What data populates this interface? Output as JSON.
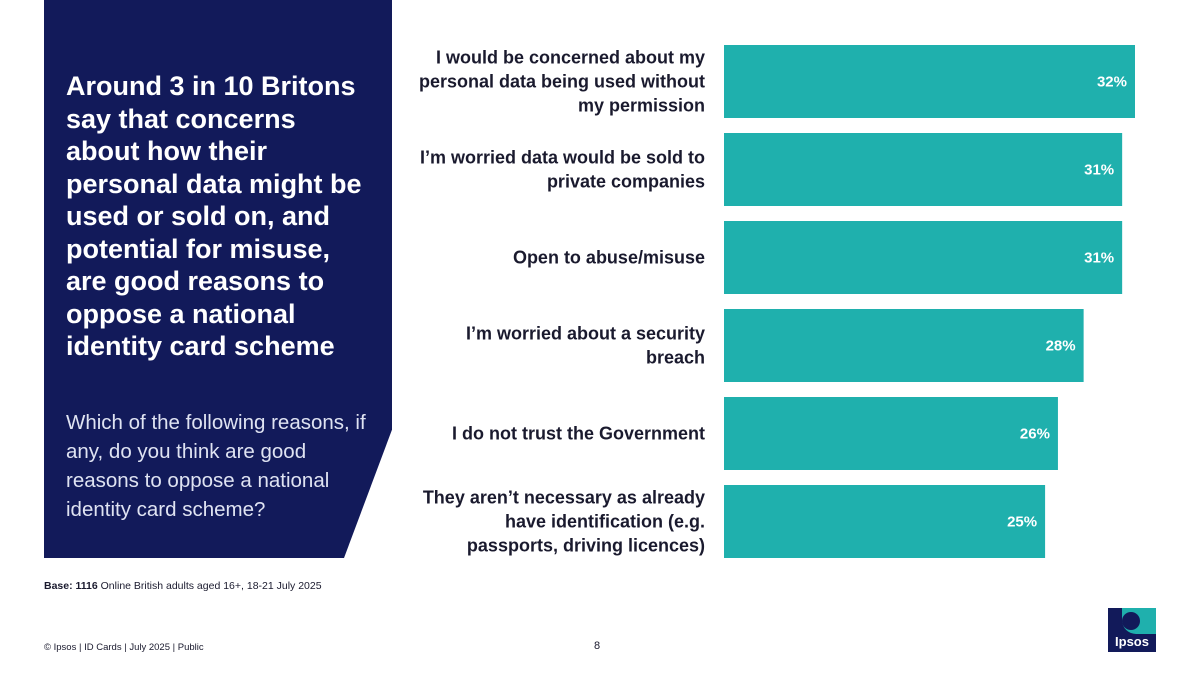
{
  "panel": {
    "headline": "Around 3 in 10 Britons say that concerns about how their personal data might be used or sold on, and potential for misuse, are good reasons to oppose a national identity card scheme",
    "question": "Which of the following reasons, if any, do you think are good reasons to oppose a national identity card scheme?"
  },
  "chart_data": {
    "type": "bar",
    "orientation": "horizontal",
    "categories": [
      [
        "I would be concerned about my",
        "personal data being used without",
        "my permission"
      ],
      [
        "I’m worried data would be sold to",
        "private companies"
      ],
      [
        "Open to abuse/misuse"
      ],
      [
        "I’m worried about a security",
        "breach"
      ],
      [
        "I do not trust the Government"
      ],
      [
        "They aren’t necessary as already",
        "have identification (e.g.",
        "passports, driving licences)"
      ]
    ],
    "values": [
      32,
      31,
      31,
      28,
      26,
      25
    ],
    "value_labels": [
      "32%",
      "31%",
      "31%",
      "28%",
      "26%",
      "25%"
    ],
    "unit": "%",
    "xlim": [
      0,
      32
    ],
    "grid": false,
    "legend": "none",
    "bar_color": "#1fb0ad"
  },
  "base": {
    "label": "Base: 1116",
    "text": "Online British adults aged 16+, 18-21 July 2025"
  },
  "footer": {
    "copyright": "© Ipsos | ID Cards | July 2025 | Public",
    "page_number": "8"
  },
  "logo": {
    "text": "Ipsos"
  },
  "colors": {
    "panel": "#121a5a",
    "accent": "#1fb0ad"
  }
}
